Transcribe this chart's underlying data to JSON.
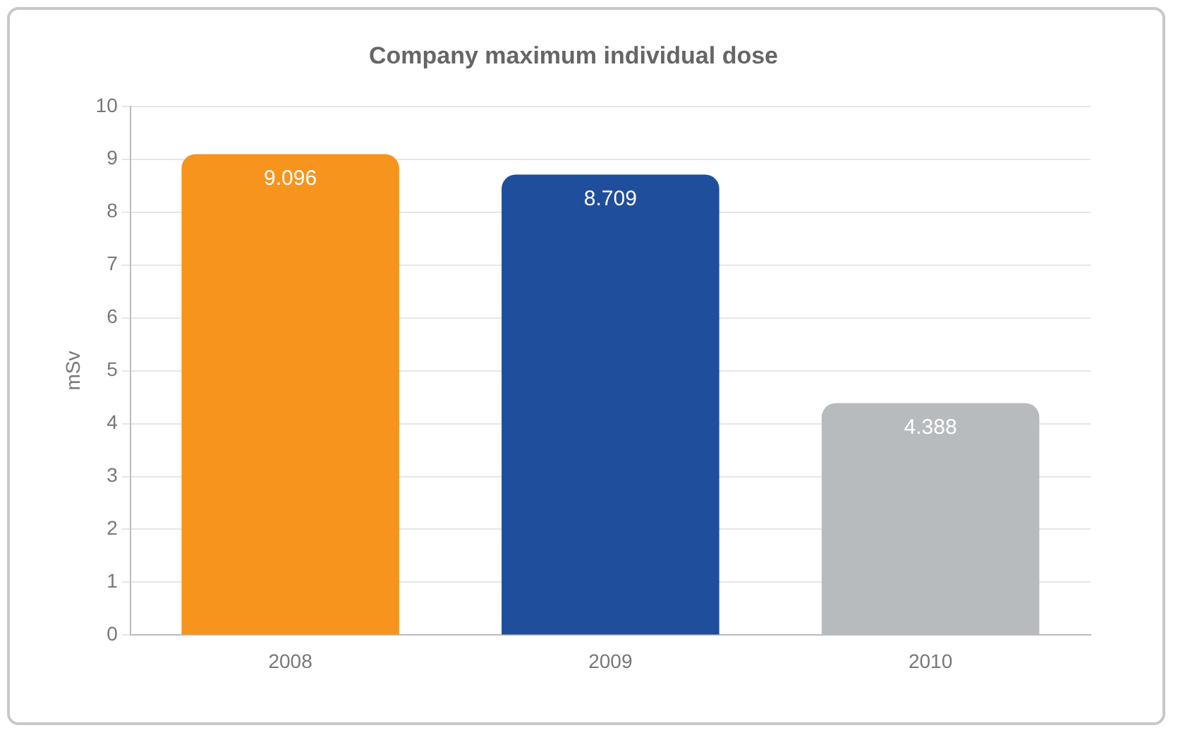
{
  "chart_data": {
    "type": "bar",
    "title": "Company maximum individual dose",
    "ylabel": "mSv",
    "categories": [
      "2008",
      "2009",
      "2010"
    ],
    "values": [
      9.096,
      8.709,
      4.388
    ],
    "colors": [
      "#f7941d",
      "#1f4e9c",
      "#b8bbbe"
    ],
    "ylim": [
      0,
      10
    ],
    "yticks": [
      0,
      1,
      2,
      3,
      4,
      5,
      6,
      7,
      8,
      9,
      10
    ],
    "grid": "y",
    "data_labels": true,
    "legend": false
  }
}
